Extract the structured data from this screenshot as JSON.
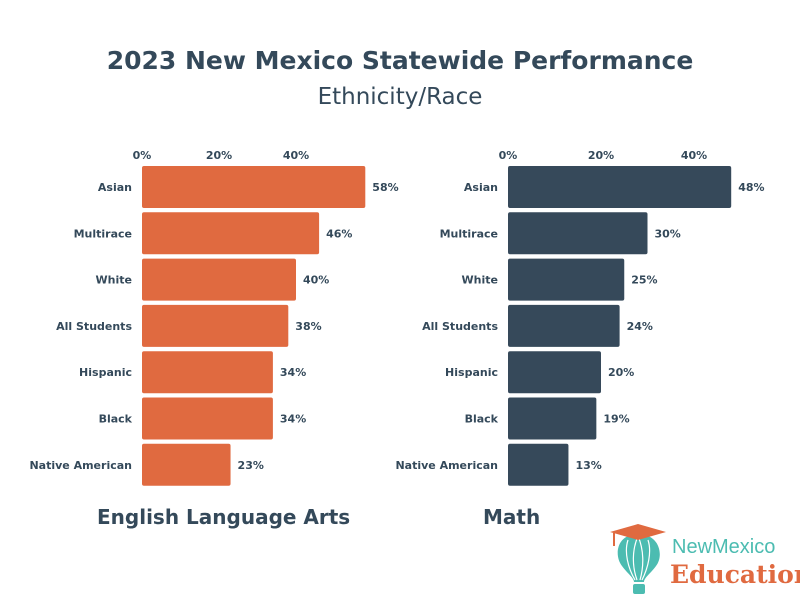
{
  "title": "2023 New Mexico Statewide Performance",
  "subtitle": "Ethnicity/Race",
  "colors": {
    "ela": "#E06A40",
    "math": "#36495A",
    "text": "#34495A"
  },
  "logo": {
    "line1": "NewMexico",
    "line2": "Education"
  },
  "chart_data": [
    {
      "type": "bar",
      "orientation": "horizontal",
      "title": "English Language Arts",
      "categories": [
        "Asian",
        "Multirace",
        "White",
        "All Students",
        "Hispanic",
        "Black",
        "Native American"
      ],
      "values": [
        58,
        46,
        40,
        38,
        34,
        34,
        23
      ],
      "data_labels": [
        "58%",
        "46%",
        "40%",
        "38%",
        "34%",
        "34%",
        "23%"
      ],
      "xticks": [
        "0%",
        "20%",
        "40%"
      ],
      "xtick_values": [
        0,
        20,
        40
      ],
      "xaxis_position": "top",
      "grid": false,
      "color": "#E06A40"
    },
    {
      "type": "bar",
      "orientation": "horizontal",
      "title": "Math",
      "categories": [
        "Asian",
        "Multirace",
        "White",
        "All Students",
        "Hispanic",
        "Black",
        "Native American"
      ],
      "values": [
        48,
        30,
        25,
        24,
        20,
        19,
        13
      ],
      "data_labels": [
        "48%",
        "30%",
        "25%",
        "24%",
        "20%",
        "19%",
        "13%"
      ],
      "xticks": [
        "0%",
        "20%",
        "40%"
      ],
      "xtick_values": [
        0,
        20,
        40
      ],
      "xaxis_position": "top",
      "grid": false,
      "color": "#36495A"
    }
  ]
}
